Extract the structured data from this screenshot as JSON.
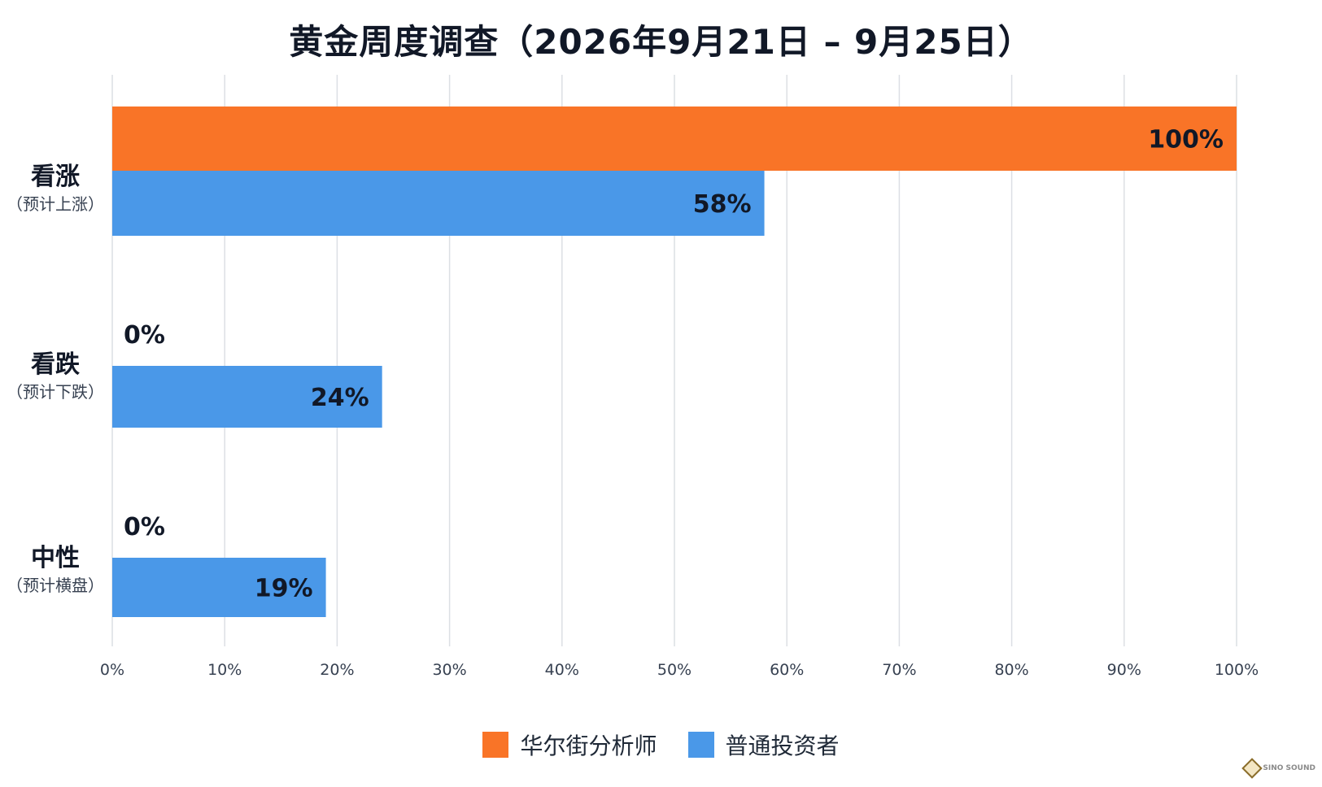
{
  "chart_data": {
    "type": "bar",
    "orientation": "horizontal",
    "title": "黄金周度调查（2026年9月21日 – 9月25日）",
    "categories": [
      {
        "label": "看涨",
        "sublabel": "（预计上涨）"
      },
      {
        "label": "看跌",
        "sublabel": "（预计下跌）"
      },
      {
        "label": "中性",
        "sublabel": "（预计横盘）"
      }
    ],
    "series": [
      {
        "name": "华尔街分析师",
        "color": "#F97427",
        "values": [
          100,
          0,
          0
        ],
        "value_labels": [
          "100%",
          "0%",
          "0%"
        ]
      },
      {
        "name": "普通投资者",
        "color": "#4A98E8",
        "values": [
          58,
          24,
          19
        ],
        "value_labels": [
          "58%",
          "24%",
          "19%"
        ]
      }
    ],
    "x_ticks": [
      "0%",
      "10%",
      "20%",
      "30%",
      "40%",
      "50%",
      "60%",
      "70%",
      "80%",
      "90%",
      "100%"
    ],
    "xlim": [
      0,
      100
    ],
    "grid": true,
    "legend_position": "bottom"
  },
  "watermark": {
    "text": "SINO SOUND"
  }
}
